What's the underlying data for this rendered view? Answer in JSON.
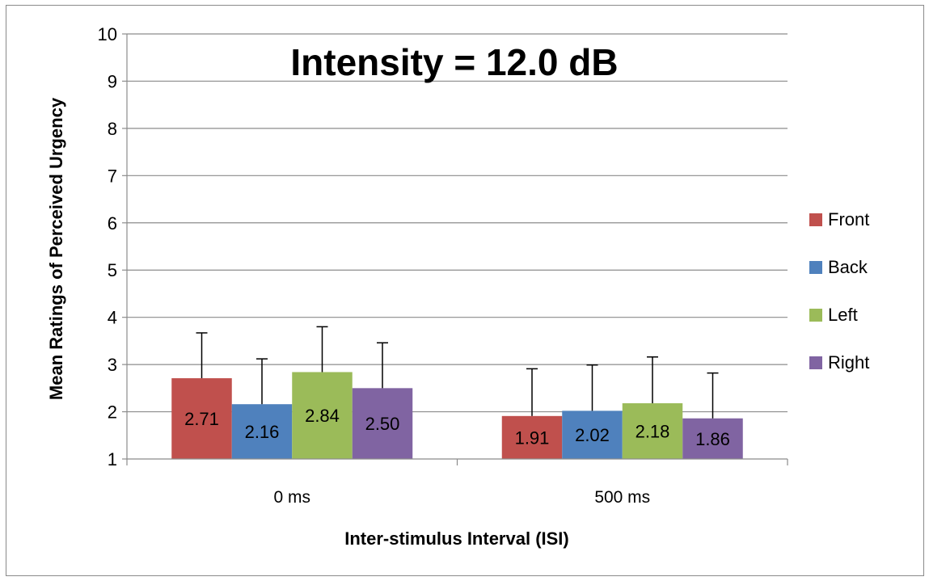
{
  "chart_data": {
    "type": "bar",
    "title": "Intensity = 12.0 dB",
    "xlabel": "Inter-stimulus Interval (ISI)",
    "ylabel": "Mean Ratings of Perceived Urgency",
    "categories": [
      "0 ms",
      "500 ms"
    ],
    "ylim": [
      1,
      10
    ],
    "yticks": [
      "1",
      "2",
      "3",
      "4",
      "5",
      "6",
      "7",
      "8",
      "9",
      "10"
    ],
    "grid": true,
    "legend_position": "right",
    "series": [
      {
        "name": "Front",
        "color": "#c0504d",
        "values": [
          2.71,
          1.91
        ],
        "labels": [
          "2.71",
          "1.91"
        ],
        "error_upper": [
          3.67,
          2.91
        ]
      },
      {
        "name": "Back",
        "color": "#4f81bd",
        "values": [
          2.16,
          2.02
        ],
        "labels": [
          "2.16",
          "2.02"
        ],
        "error_upper": [
          3.12,
          2.99
        ]
      },
      {
        "name": "Left",
        "color": "#9bbb59",
        "values": [
          2.84,
          2.18
        ],
        "labels": [
          "2.84",
          "2.18"
        ],
        "error_upper": [
          3.8,
          3.16
        ]
      },
      {
        "name": "Right",
        "color": "#8064a2",
        "values": [
          2.5,
          1.86
        ],
        "labels": [
          "2.50",
          "1.86"
        ],
        "error_upper": [
          3.46,
          2.82
        ]
      }
    ]
  }
}
